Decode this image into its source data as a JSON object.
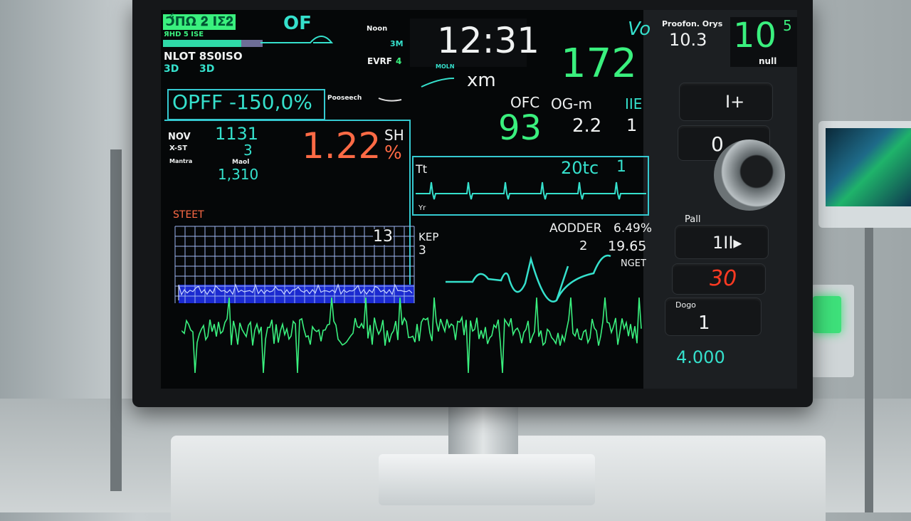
{
  "top_left": {
    "badge": "Ͻ̈́ΠΩ 𝟐 ΙΣ𝟐",
    "badge_text": "ЯHD 5 ISE",
    "of_label": "OF",
    "label_row": "NLOT 8S0ISO",
    "val_a": "3D",
    "val_b": "3D"
  },
  "offset_box": {
    "value": "OPFF -150,0%"
  },
  "mid_top": {
    "label_a": "Noon",
    "val_a": "3M",
    "label_b": "EVRF",
    "val_b": "4",
    "label_c": "Pooseech",
    "small": "MOLN"
  },
  "clock": {
    "time": "12:31",
    "unit": "xm"
  },
  "hr": {
    "value": "172",
    "symbol": "Vo"
  },
  "params": [
    {
      "label": "OFC",
      "value": "93"
    },
    {
      "label": "OG-m",
      "value": "2.2"
    },
    {
      "label": "IIE",
      "value": "1"
    }
  ],
  "top_right": {
    "label": "Proofon. Orys",
    "value": "10.3",
    "big": "10",
    "sup": "5",
    "unit": "null"
  },
  "left_stats": {
    "rows": [
      {
        "label": "NOV",
        "value": "1131"
      },
      {
        "label": "X-ST",
        "value": "3"
      },
      {
        "label": "Mantra",
        "value": "Maol"
      }
    ],
    "extra": "1,310",
    "big": "1.22",
    "big_unit_top": "SH",
    "big_unit": "%"
  },
  "ecg_box": {
    "label": "Tt",
    "value": "20tc",
    "value2": "1",
    "footer": "Yr"
  },
  "grid_panel": {
    "label": "STEET",
    "value": "13"
  },
  "kep": {
    "label": "KEP",
    "value": "3"
  },
  "aodder": {
    "label": "AODDER",
    "value": "6.49%",
    "sub": "2",
    "sub_value": "19.65",
    "tag": "NGET"
  },
  "controls": {
    "btn1": "I+",
    "btn2": "0",
    "label3": "Pall",
    "btn3": "1II▸",
    "btn4": "30",
    "label5": "Dogo",
    "btn5": "1",
    "footer": "4.000"
  },
  "colors": {
    "green": "#3af07e",
    "cyan": "#35e0cc",
    "red": "#ff4a2a",
    "orange": "#ff6a45"
  }
}
